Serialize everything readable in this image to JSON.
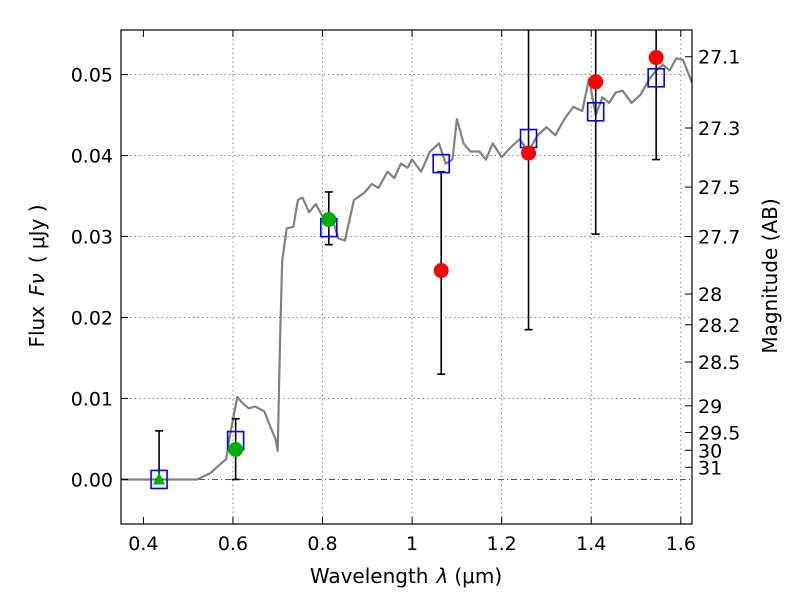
{
  "chart_data": {
    "type": "scatter",
    "xlabel_text": "Wavelength",
    "xlabel_symbol": "λ",
    "xlabel_unit": "(μm)",
    "ylabel_text": "Flux",
    "ylabel_symbol": "Fν",
    "ylabel_unit": "( μJy )",
    "y2label": "Magnitude (AB)",
    "xlim": [
      0.35,
      1.625
    ],
    "ylim": [
      -0.0055,
      0.0555
    ],
    "xticks": [
      0.4,
      0.6,
      0.8,
      1.0,
      1.2,
      1.4,
      1.6
    ],
    "xtick_labels": [
      "0.4",
      "0.6",
      "0.8",
      "1",
      "1.2",
      "1.4",
      "1.6"
    ],
    "yticks": [
      0.0,
      0.01,
      0.02,
      0.03,
      0.04,
      0.05
    ],
    "ytick_labels": [
      "0.00",
      "0.01",
      "0.02",
      "0.03",
      "0.04",
      "0.05"
    ],
    "grid": true,
    "colors": {
      "model": "#808080",
      "green": "#00b000",
      "red": "#ff0000",
      "square": "#0000ff",
      "errorbar": "#000000"
    },
    "model_spectrum": [
      [
        0.35,
        0.0
      ],
      [
        0.52,
        0.0
      ],
      [
        0.55,
        0.0008
      ],
      [
        0.57,
        0.0018
      ],
      [
        0.585,
        0.0025
      ],
      [
        0.595,
        0.006
      ],
      [
        0.61,
        0.0102
      ],
      [
        0.62,
        0.0095
      ],
      [
        0.635,
        0.0088
      ],
      [
        0.65,
        0.009
      ],
      [
        0.67,
        0.0084
      ],
      [
        0.685,
        0.0063
      ],
      [
        0.695,
        0.005
      ],
      [
        0.7,
        0.0035
      ],
      [
        0.705,
        0.017
      ],
      [
        0.71,
        0.027
      ],
      [
        0.72,
        0.031
      ],
      [
        0.735,
        0.0312
      ],
      [
        0.745,
        0.0345
      ],
      [
        0.755,
        0.0348
      ],
      [
        0.77,
        0.033
      ],
      [
        0.785,
        0.034
      ],
      [
        0.8,
        0.0325
      ],
      [
        0.82,
        0.0325
      ],
      [
        0.835,
        0.0298
      ],
      [
        0.85,
        0.0295
      ],
      [
        0.87,
        0.0345
      ],
      [
        0.895,
        0.0355
      ],
      [
        0.91,
        0.0365
      ],
      [
        0.925,
        0.036
      ],
      [
        0.945,
        0.038
      ],
      [
        0.96,
        0.0372
      ],
      [
        0.975,
        0.039
      ],
      [
        0.99,
        0.0385
      ],
      [
        1.0,
        0.0395
      ],
      [
        1.02,
        0.038
      ],
      [
        1.04,
        0.0405
      ],
      [
        1.06,
        0.0415
      ],
      [
        1.075,
        0.039
      ],
      [
        1.09,
        0.0395
      ],
      [
        1.1,
        0.0445
      ],
      [
        1.115,
        0.0415
      ],
      [
        1.13,
        0.0405
      ],
      [
        1.15,
        0.0405
      ],
      [
        1.165,
        0.0395
      ],
      [
        1.18,
        0.0415
      ],
      [
        1.2,
        0.0398
      ],
      [
        1.22,
        0.041
      ],
      [
        1.24,
        0.042
      ],
      [
        1.26,
        0.0405
      ],
      [
        1.28,
        0.0425
      ],
      [
        1.3,
        0.0435
      ],
      [
        1.32,
        0.0425
      ],
      [
        1.34,
        0.0445
      ],
      [
        1.36,
        0.046
      ],
      [
        1.38,
        0.0455
      ],
      [
        1.395,
        0.0495
      ],
      [
        1.41,
        0.045
      ],
      [
        1.425,
        0.0472
      ],
      [
        1.44,
        0.0465
      ],
      [
        1.455,
        0.0478
      ],
      [
        1.47,
        0.048
      ],
      [
        1.49,
        0.0465
      ],
      [
        1.51,
        0.0475
      ],
      [
        1.53,
        0.0495
      ],
      [
        1.545,
        0.0505
      ],
      [
        1.56,
        0.0512
      ],
      [
        1.575,
        0.0505
      ],
      [
        1.59,
        0.052
      ],
      [
        1.605,
        0.0518
      ],
      [
        1.625,
        0.049
      ]
    ],
    "model_photometry": [
      {
        "x": 0.435,
        "y": 0.0
      },
      {
        "x": 0.606,
        "y": 0.0048
      },
      {
        "x": 0.814,
        "y": 0.0311
      },
      {
        "x": 1.065,
        "y": 0.039
      },
      {
        "x": 1.26,
        "y": 0.0421
      },
      {
        "x": 1.41,
        "y": 0.0454
      },
      {
        "x": 1.545,
        "y": 0.0496
      }
    ],
    "observations": [
      {
        "x": 0.435,
        "y": 0.0,
        "err_low": 0.0,
        "err_high": 0.006,
        "marker": "triangle",
        "color": "green"
      },
      {
        "x": 0.606,
        "y": 0.0037,
        "err_low": 0.0037,
        "err_high": 0.0038,
        "marker": "circle",
        "color": "green"
      },
      {
        "x": 0.814,
        "y": 0.0321,
        "err_low": 0.0031,
        "err_high": 0.0034,
        "marker": "circle",
        "color": "green"
      },
      {
        "x": 1.065,
        "y": 0.0258,
        "err_low": 0.0128,
        "err_high": 0.0122,
        "marker": "circle",
        "color": "red"
      },
      {
        "x": 1.26,
        "y": 0.0403,
        "err_low": 0.0218,
        "err_high": 0.0162,
        "marker": "circle",
        "color": "red"
      },
      {
        "x": 1.41,
        "y": 0.0491,
        "err_low": 0.0188,
        "err_high": 0.0074,
        "marker": "circle",
        "color": "red"
      },
      {
        "x": 1.545,
        "y": 0.0521,
        "err_low": 0.0126,
        "err_high": 0.0044,
        "marker": "circle",
        "color": "red"
      }
    ],
    "magnitude_ticks": [
      {
        "label": "27.1",
        "flux": 0.0522
      },
      {
        "label": "27.3",
        "flux": 0.0434
      },
      {
        "label": "27.5",
        "flux": 0.0361
      },
      {
        "label": "27.7",
        "flux": 0.03
      },
      {
        "label": "28",
        "flux": 0.0229
      },
      {
        "label": "28.2",
        "flux": 0.0191
      },
      {
        "label": "28.5",
        "flux": 0.0145
      },
      {
        "label": "29",
        "flux": 0.0091
      },
      {
        "label": "29.5",
        "flux": 0.0058
      },
      {
        "label": "30",
        "flux": 0.0036
      },
      {
        "label": "31",
        "flux": 0.0015
      }
    ]
  }
}
